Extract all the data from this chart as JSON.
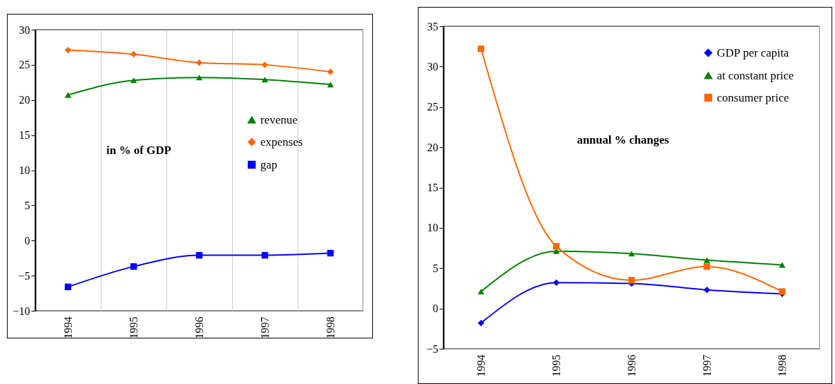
{
  "chart_data": [
    {
      "type": "line",
      "categories": [
        "1994",
        "1995",
        "1996",
        "1997",
        "1998"
      ],
      "ylim": [
        -10,
        30
      ],
      "yticks": [
        -10,
        -5,
        0,
        5,
        10,
        15,
        20,
        25,
        30
      ],
      "grid": "x",
      "legend": "right",
      "annotations": [
        "in % of GDP"
      ],
      "series": [
        {
          "name": "revenue",
          "color": "#008000",
          "marker": "triangle",
          "values": [
            20.7,
            22.8,
            23.2,
            22.9,
            22.2
          ]
        },
        {
          "name": "expenses",
          "color": "#ff6600",
          "marker": "diamond",
          "values": [
            27.1,
            26.5,
            25.3,
            25.0,
            24.0
          ]
        },
        {
          "name": "gap",
          "color": "#0000ff",
          "marker": "square",
          "values": [
            -6.6,
            -3.7,
            -2.1,
            -2.1,
            -1.8
          ]
        }
      ]
    },
    {
      "type": "line",
      "categories": [
        "1994",
        "1995",
        "1996",
        "1997",
        "1998"
      ],
      "ylim": [
        -5,
        35
      ],
      "yticks": [
        -5,
        0,
        5,
        10,
        15,
        20,
        25,
        30,
        35
      ],
      "grid": false,
      "legend": "top right",
      "annotations": [
        "annual % changes"
      ],
      "series": [
        {
          "name": "GDP per capita",
          "color": "#0000ff",
          "marker": "diamond",
          "values": [
            -1.8,
            3.2,
            3.1,
            2.3,
            1.8
          ]
        },
        {
          "name": "at constant price",
          "color": "#008000",
          "marker": "triangle",
          "values": [
            2.1,
            7.1,
            6.8,
            6.0,
            5.4
          ]
        },
        {
          "name": "consumer price",
          "color": "#ff6600",
          "marker": "square",
          "values": [
            32.2,
            7.7,
            3.5,
            5.2,
            2.1
          ]
        }
      ]
    }
  ]
}
